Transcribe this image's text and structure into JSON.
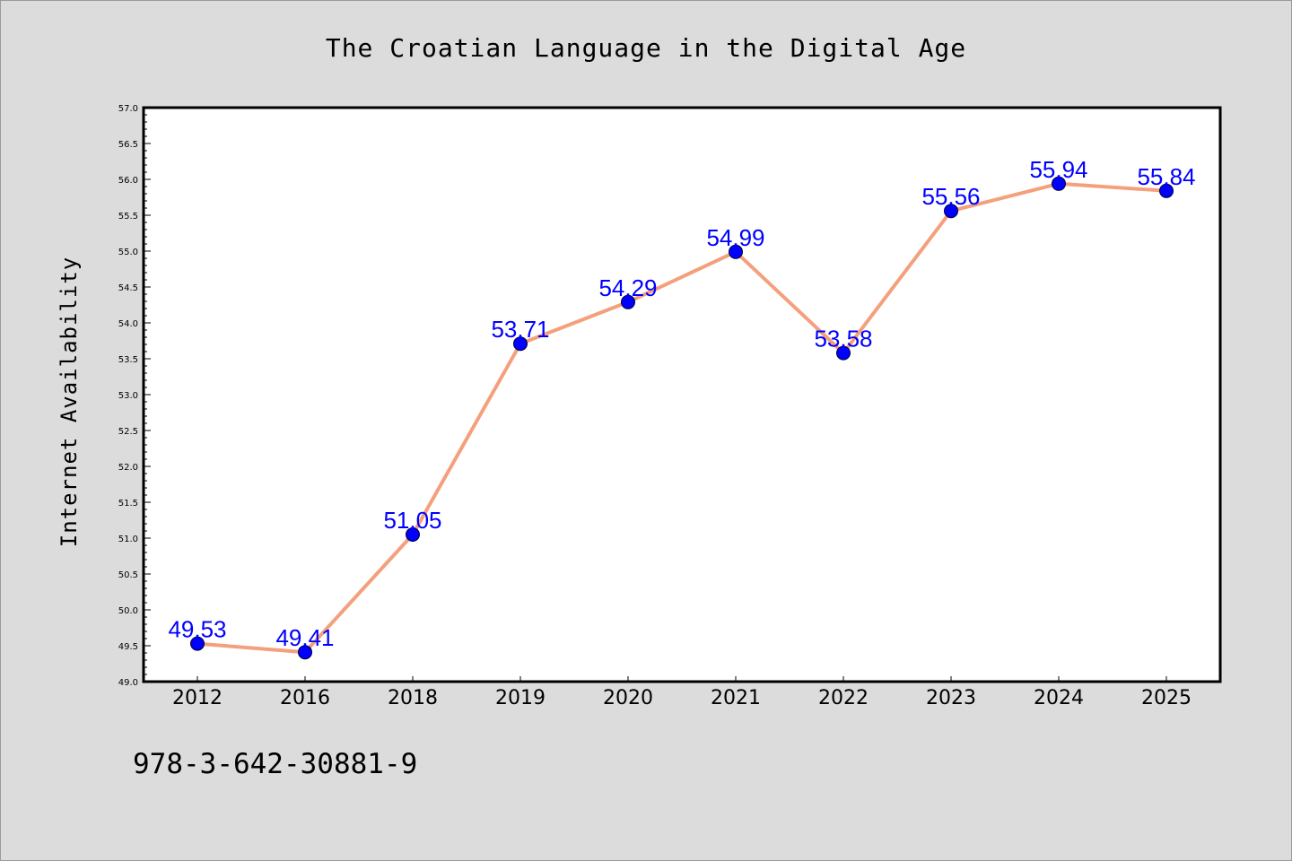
{
  "chart_data": {
    "type": "line",
    "title": "The Croatian Language in the Digital Age",
    "xlabel": "",
    "ylabel": "Internet Availability",
    "categories": [
      "2012",
      "2016",
      "2018",
      "2019",
      "2020",
      "2021",
      "2022",
      "2023",
      "2024",
      "2025"
    ],
    "series": [
      {
        "values": [
          49.53,
          49.41,
          51.05,
          53.71,
          54.29,
          54.99,
          53.58,
          55.56,
          55.94,
          55.84
        ],
        "labels": [
          "49.53",
          "49.41",
          "51.05",
          "53.71",
          "54.29",
          "54.99",
          "53.58",
          "55.56",
          "55.94",
          "55.84"
        ]
      }
    ],
    "ylim": [
      49.0,
      57.0
    ],
    "yticks": [
      "49.0",
      "49.5",
      "50.0",
      "50.5",
      "51.0",
      "51.5",
      "52.0",
      "52.5",
      "53.0",
      "53.5",
      "54.0",
      "54.5",
      "55.0",
      "55.5",
      "56.0",
      "56.5",
      "57.0"
    ],
    "grid": false,
    "line_color": "#f4a07c",
    "marker_color": "#0000ff",
    "label_color": "#0000ff"
  },
  "footer": {
    "isbn": "978-3-642-30881-9"
  }
}
